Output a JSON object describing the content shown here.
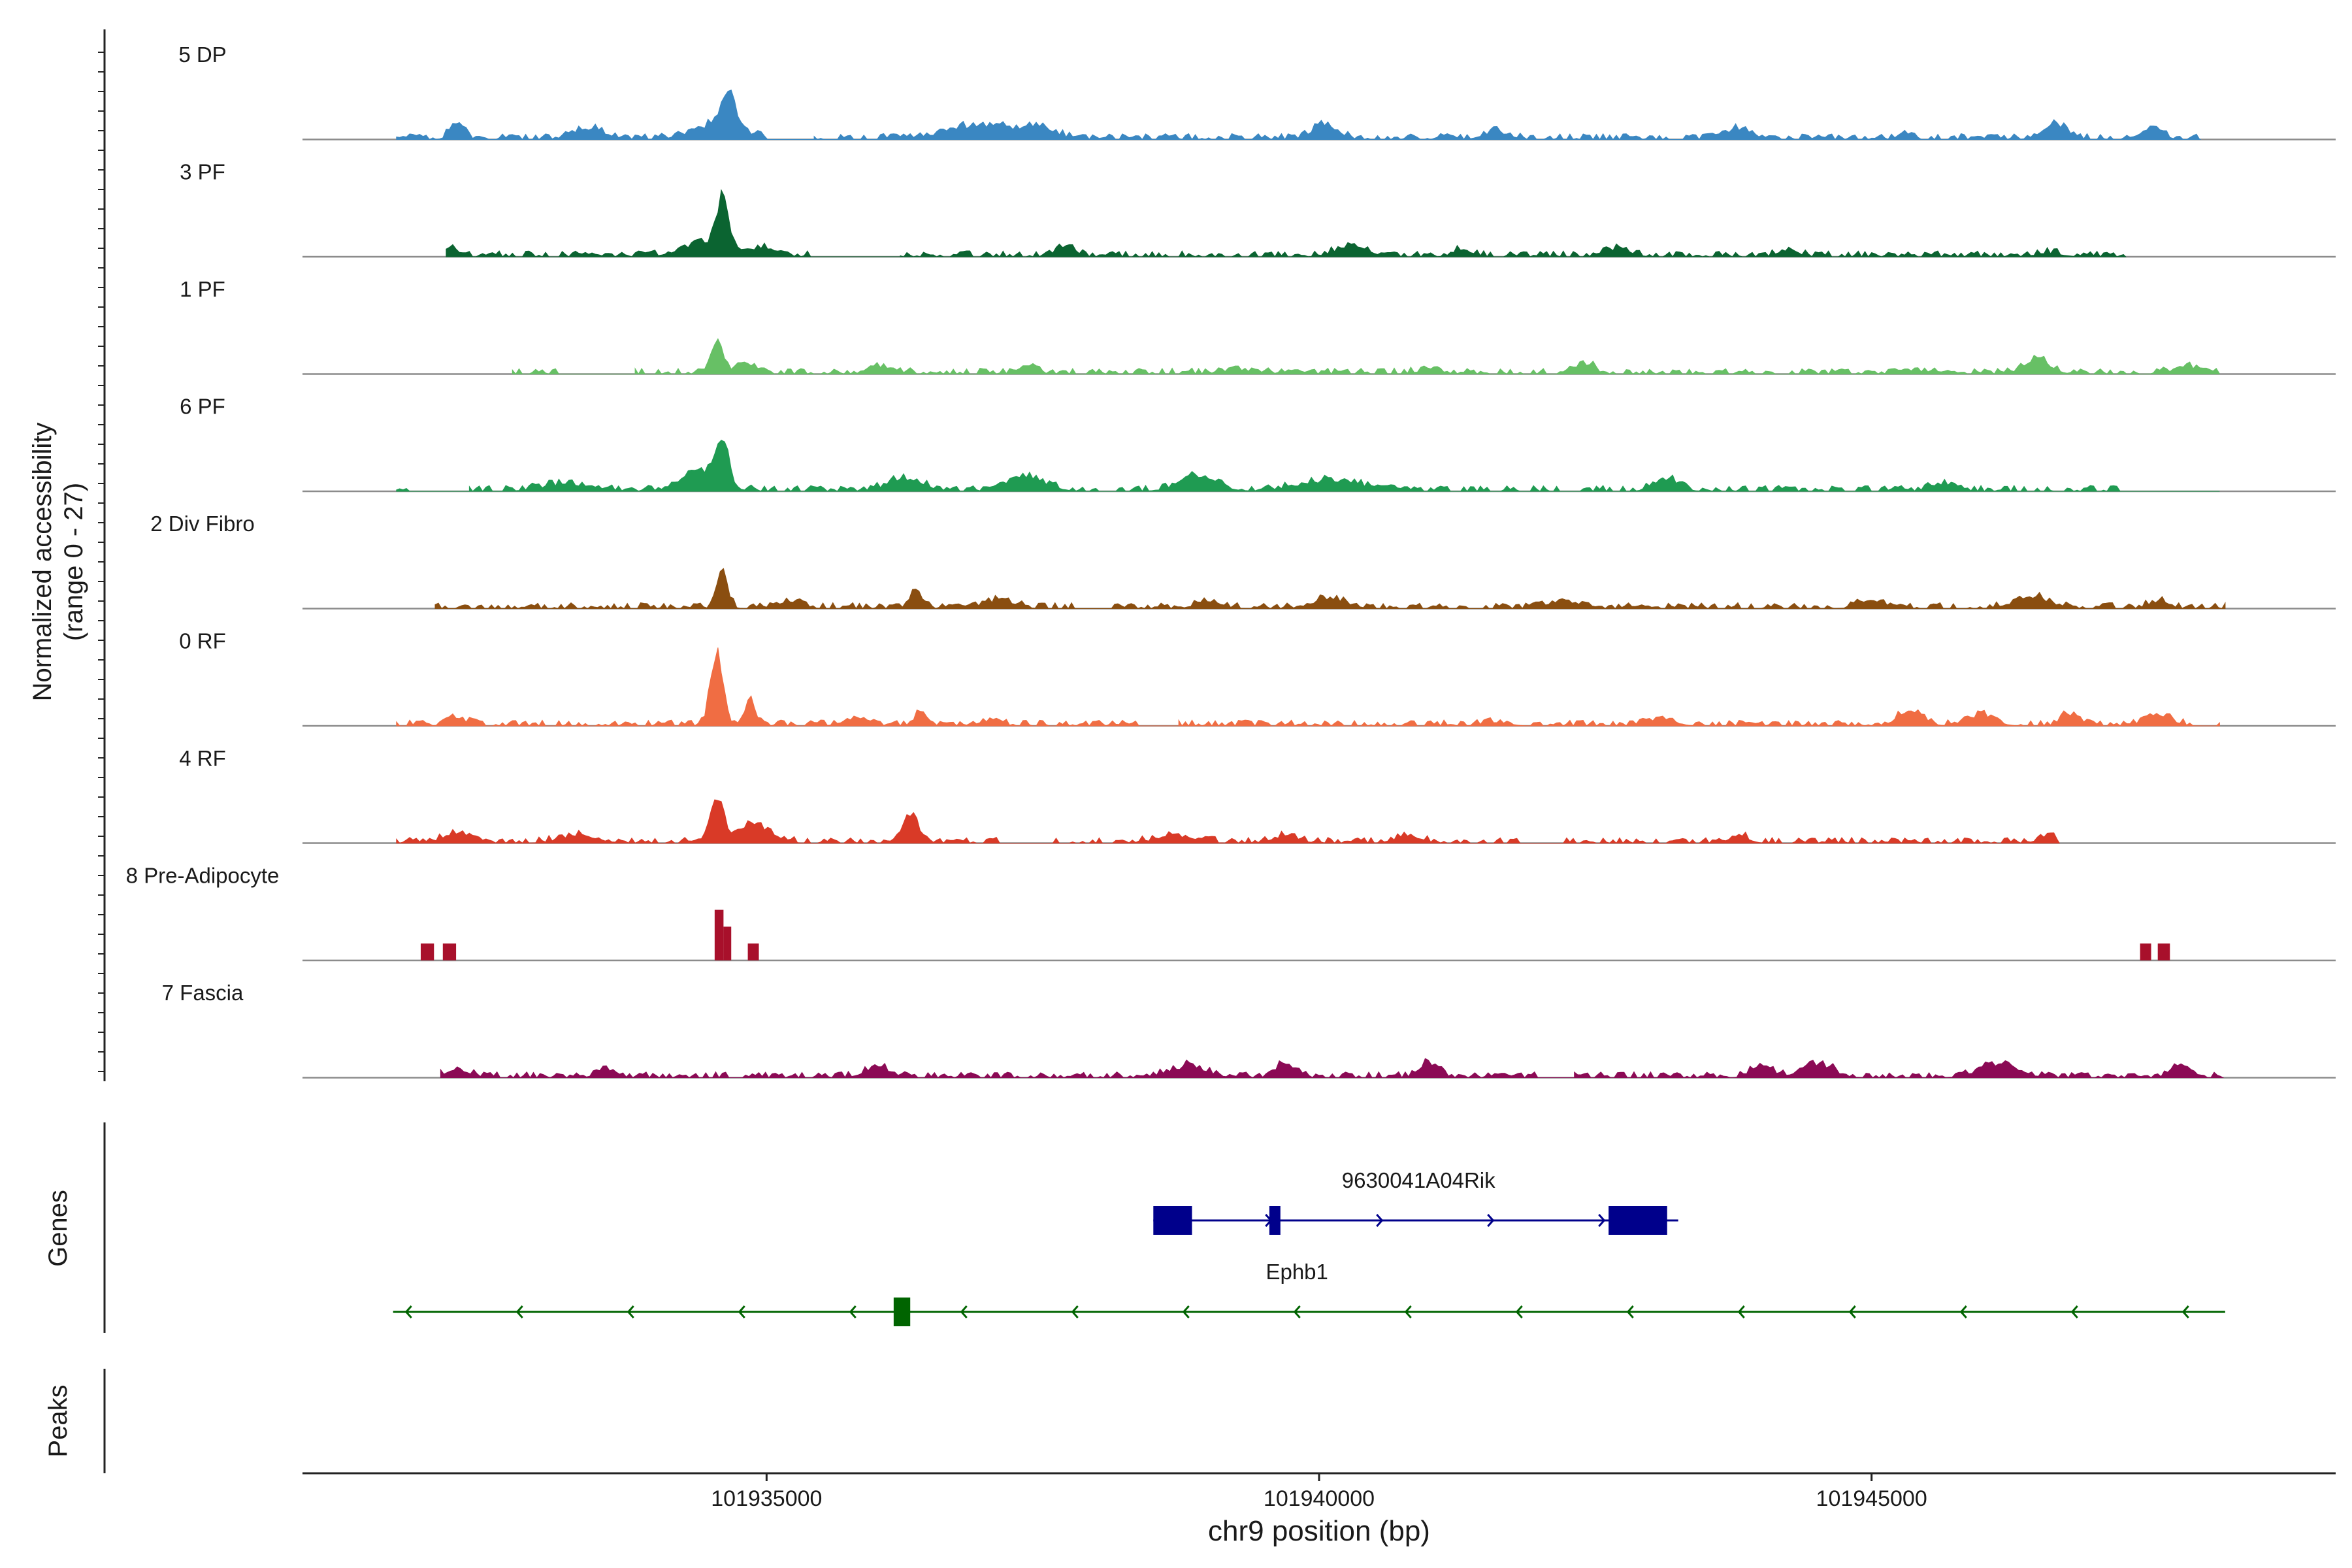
{
  "chart_data": {
    "type": "area",
    "genomic_range": [
      101930800,
      101949200
    ],
    "ylabel_line1": "Normalized accessibility",
    "ylabel_line2": "(range 0 - 27)",
    "ylim": [
      0,
      27
    ],
    "xlabel": "chr9 position (bp)",
    "x_ticks": [
      {
        "value": 101935000,
        "label": "101935000"
      },
      {
        "value": 101940000,
        "label": "101940000"
      },
      {
        "value": 101945000,
        "label": "101945000"
      }
    ],
    "tracks": [
      {
        "name": "5 DP",
        "color": "#3a87c2",
        "start": 101931650,
        "end": 101947980,
        "peaks": [
          [
            101932200,
            5,
            110
          ],
          [
            101933400,
            3,
            250
          ],
          [
            101934650,
            10,
            110
          ],
          [
            101934550,
            4,
            380
          ],
          [
            101937000,
            4,
            600
          ],
          [
            101937500,
            2,
            200
          ],
          [
            101940050,
            4,
            200
          ],
          [
            101941600,
            2,
            200
          ],
          [
            101943800,
            3,
            200
          ],
          [
            101945300,
            2,
            100
          ],
          [
            101946650,
            4,
            200
          ],
          [
            101947550,
            3,
            150
          ]
        ],
        "gaps": [
          [
            101935000,
            101935400
          ]
        ]
      },
      {
        "name": "3 PF",
        "color": "#0b6431",
        "start": 101932100,
        "end": 101947300,
        "peaks": [
          [
            101932150,
            2,
            120
          ],
          [
            101934600,
            14,
            90
          ],
          [
            101934500,
            4,
            400
          ],
          [
            101935000,
            2,
            200
          ],
          [
            101937700,
            3,
            150
          ],
          [
            101940300,
            3,
            250
          ],
          [
            101941300,
            2,
            150
          ],
          [
            101942700,
            2,
            200
          ],
          [
            101944250,
            2,
            150
          ],
          [
            101946600,
            1,
            200
          ]
        ],
        "gaps": [
          [
            101935400,
            101936200
          ]
        ]
      },
      {
        "name": "1 PF",
        "color": "#67c065",
        "start": 101932700,
        "end": 101948150,
        "peaks": [
          [
            101934550,
            10,
            90
          ],
          [
            101934800,
            3,
            150
          ],
          [
            101936050,
            2,
            200
          ],
          [
            101937350,
            2,
            150
          ],
          [
            101939300,
            1,
            300
          ],
          [
            101941000,
            1,
            200
          ],
          [
            101942400,
            3,
            150
          ],
          [
            101945350,
            1,
            200
          ],
          [
            101946500,
            4,
            200
          ],
          [
            101947850,
            2,
            200
          ]
        ],
        "gaps": [
          [
            101933100,
            101933800
          ]
        ]
      },
      {
        "name": "6 PF",
        "color": "#1f9b52",
        "start": 101931650,
        "end": 101948150,
        "peaks": [
          [
            101934600,
            12,
            100
          ],
          [
            101934400,
            6,
            300
          ],
          [
            101933200,
            2,
            400
          ],
          [
            101936250,
            3,
            300
          ],
          [
            101937350,
            4,
            300
          ],
          [
            101938900,
            4,
            300
          ],
          [
            101940100,
            3,
            500
          ],
          [
            101943150,
            3,
            200
          ],
          [
            101945650,
            2,
            200
          ]
        ],
        "gaps": [
          [
            101931800,
            101932300
          ],
          [
            101947300,
            101948100
          ]
        ]
      },
      {
        "name": "2 Div Fibro",
        "color": "#8a4e10",
        "start": 101932000,
        "end": 101948200,
        "peaks": [
          [
            101934600,
            10,
            90
          ],
          [
            101935200,
            2,
            200
          ],
          [
            101936350,
            5,
            100
          ],
          [
            101937100,
            2,
            250
          ],
          [
            101939000,
            2,
            200
          ],
          [
            101940100,
            3,
            250
          ],
          [
            101942200,
            2,
            250
          ],
          [
            101945000,
            2,
            200
          ],
          [
            101946450,
            3,
            300
          ],
          [
            101947600,
            2,
            150
          ]
        ],
        "gaps": [
          [
            101937800,
            101938100
          ]
        ]
      },
      {
        "name": "0 RF",
        "color": "#f06d43",
        "start": 101931650,
        "end": 101948150,
        "peaks": [
          [
            101934550,
            21,
            100
          ],
          [
            101934850,
            8,
            80
          ],
          [
            101932200,
            2,
            150
          ],
          [
            101935800,
            2,
            200
          ],
          [
            101936400,
            4,
            100
          ],
          [
            101937000,
            1,
            200
          ],
          [
            101941600,
            1,
            200
          ],
          [
            101943100,
            2,
            200
          ],
          [
            101945350,
            4,
            200
          ],
          [
            101946000,
            3,
            200
          ],
          [
            101946800,
            3,
            150
          ],
          [
            101947600,
            3,
            200
          ]
        ],
        "gaps": [
          [
            101938400,
            101938700
          ]
        ]
      },
      {
        "name": "4 RF",
        "color": "#d93a27",
        "start": 101931650,
        "end": 101946700,
        "peaks": [
          [
            101934550,
            14,
            100
          ],
          [
            101934900,
            5,
            250
          ],
          [
            101936300,
            7,
            150
          ],
          [
            101932200,
            3,
            200
          ],
          [
            101933300,
            2,
            300
          ],
          [
            101938700,
            2,
            300
          ],
          [
            101939700,
            2,
            200
          ],
          [
            101940800,
            2,
            200
          ],
          [
            101943800,
            2,
            150
          ],
          [
            101946600,
            2,
            150
          ]
        ],
        "gaps": [
          [
            101937100,
            101937500
          ],
          [
            101941800,
            101942200
          ]
        ]
      },
      {
        "name": "8 Pre-Adipocyte",
        "color": "#a8102b",
        "bars": [
          [
            101931870,
            101931990,
            6
          ],
          [
            101932070,
            101932190,
            6
          ],
          [
            101934530,
            101934610,
            18
          ],
          [
            101934610,
            101934680,
            12
          ],
          [
            101934830,
            101934930,
            6
          ],
          [
            101947430,
            101947530,
            6
          ],
          [
            101947590,
            101947700,
            6
          ]
        ]
      },
      {
        "name": "7 Fascia",
        "color": "#8b0a55",
        "start": 101932050,
        "end": 101948180,
        "peaks": [
          [
            101932200,
            2,
            200
          ],
          [
            101933550,
            2,
            150
          ],
          [
            101936000,
            3,
            200
          ],
          [
            101938800,
            3,
            300
          ],
          [
            101939700,
            4,
            150
          ],
          [
            101941000,
            4,
            150
          ],
          [
            101944000,
            4,
            150
          ],
          [
            101944500,
            4,
            250
          ],
          [
            101946150,
            4,
            300
          ],
          [
            101947800,
            3,
            150
          ]
        ],
        "gaps": [
          [
            101942000,
            101942300
          ]
        ]
      }
    ],
    "genes_label": "Genes",
    "peaks_label": "Peaks",
    "genes": [
      {
        "name": "9630041A04Rik",
        "color": "#00008b",
        "strand": "+",
        "start": 101938500,
        "end": 101943250,
        "exons": [
          [
            101938500,
            101938850
          ],
          [
            101939550,
            101939650
          ],
          [
            101942620,
            101943150
          ]
        ]
      },
      {
        "name": "Ephb1",
        "color": "#006400",
        "strand": "-",
        "start": 101931620,
        "end": 101948200,
        "exons": [
          [
            101936150,
            101936300
          ]
        ]
      }
    ]
  }
}
